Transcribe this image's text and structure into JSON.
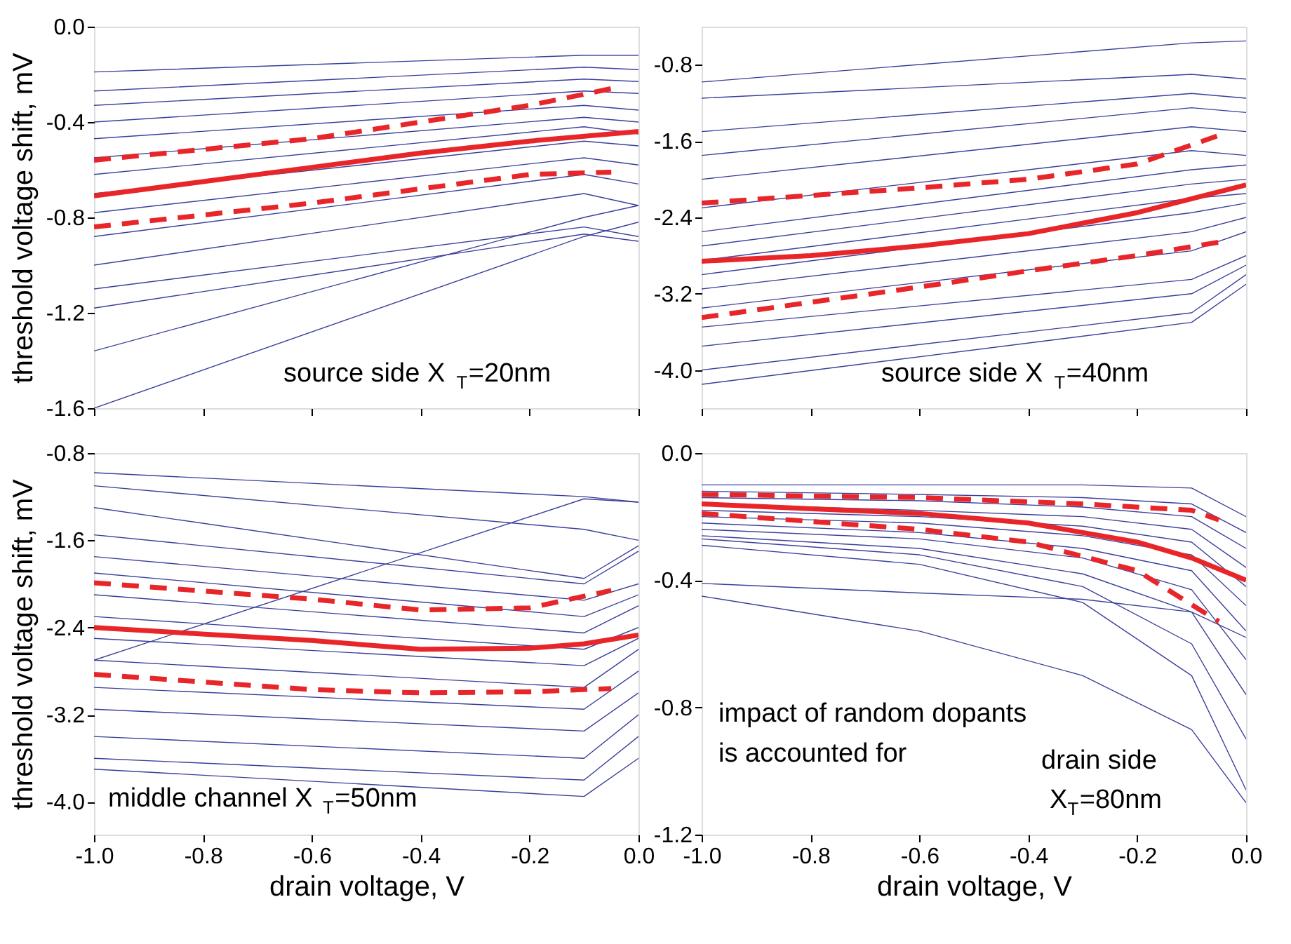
{
  "chart_data": [
    {
      "type": "line",
      "ylabel": "threshold voltage shift, mV",
      "xlim": [
        -1.0,
        0.0
      ],
      "xticks": [
        {
          "value": -1,
          "label": null
        },
        {
          "value": -0.8,
          "label": null
        },
        {
          "value": -0.6,
          "label": null
        },
        {
          "value": -0.4,
          "label": null
        },
        {
          "value": -0.2,
          "label": null
        },
        {
          "value": 0,
          "label": null
        }
      ],
      "ylim": [
        -1.6,
        0.0
      ],
      "yticks": [
        {
          "value": -1.6,
          "label": "-1.6"
        },
        {
          "value": -1.2,
          "label": "-1.2"
        },
        {
          "value": -0.8,
          "label": "-0.8"
        },
        {
          "value": -0.4,
          "label": "-0.4"
        },
        {
          "value": 0,
          "label": "0.0"
        }
      ],
      "tick_labels": "y",
      "annotations": [
        "source side  X$_{T}$=20nm"
      ],
      "series": [
        {
          "color": "#3a3f9a",
          "x": [
            -1.0,
            -0.1,
            0.0
          ],
          "values": [
            -0.19,
            -0.12,
            -0.12
          ]
        },
        {
          "color": "#3a3f9a",
          "x": [
            -1.0,
            -0.1,
            0.0
          ],
          "values": [
            -0.27,
            -0.17,
            -0.18
          ]
        },
        {
          "color": "#3a3f9a",
          "x": [
            -1.0,
            -0.1,
            0.0
          ],
          "values": [
            -0.33,
            -0.22,
            -0.23
          ]
        },
        {
          "color": "#3a3f9a",
          "x": [
            -1.0,
            -0.1,
            0.0
          ],
          "values": [
            -0.4,
            -0.27,
            -0.28
          ]
        },
        {
          "color": "#3a3f9a",
          "x": [
            -1.0,
            -0.1,
            0.0
          ],
          "values": [
            -0.47,
            -0.33,
            -0.35
          ]
        },
        {
          "color": "#3a3f9a",
          "x": [
            -1.0,
            -0.1,
            0.0
          ],
          "values": [
            -0.55,
            -0.38,
            -0.4
          ]
        },
        {
          "color": "#3a3f9a",
          "x": [
            -1.0,
            -0.1,
            0.0
          ],
          "values": [
            -0.62,
            -0.42,
            -0.45
          ]
        },
        {
          "color": "#3a3f9a",
          "x": [
            -1.0,
            -0.1,
            0.0
          ],
          "values": [
            -0.7,
            -0.48,
            -0.5
          ]
        },
        {
          "color": "#3a3f9a",
          "x": [
            -1.0,
            -0.1,
            0.0
          ],
          "values": [
            -0.78,
            -0.55,
            -0.58
          ]
        },
        {
          "color": "#3a3f9a",
          "x": [
            -1.0,
            -0.1,
            0.0
          ],
          "values": [
            -0.88,
            -0.62,
            -0.66
          ]
        },
        {
          "color": "#3a3f9a",
          "x": [
            -1.0,
            -0.1,
            0.0
          ],
          "values": [
            -1.0,
            -0.7,
            -0.75
          ]
        },
        {
          "color": "#3a3f9a",
          "x": [
            -1.0,
            -0.1,
            0.0
          ],
          "values": [
            -1.1,
            -0.84,
            -0.88
          ]
        },
        {
          "color": "#3a3f9a",
          "x": [
            -1.0,
            -0.1,
            0.0
          ],
          "values": [
            -1.18,
            -0.87,
            -0.9
          ]
        },
        {
          "color": "#3a3f9a",
          "x": [
            -1.0,
            -0.1,
            0.0
          ],
          "values": [
            -1.36,
            -0.8,
            -0.75
          ]
        },
        {
          "color": "#3a3f9a",
          "x": [
            -1.0,
            -0.1,
            0.0
          ],
          "values": [
            -1.6,
            -0.88,
            -0.82
          ]
        },
        {
          "color": "#e8262a",
          "line_style": "solid",
          "x": [
            -1.0,
            -0.8,
            -0.6,
            -0.4,
            -0.2,
            0.0
          ],
          "values": [
            -0.71,
            -0.65,
            -0.59,
            -0.53,
            -0.48,
            -0.44
          ]
        },
        {
          "color": "#e8262a",
          "line_style": "dashed",
          "x": [
            -1.0,
            -0.6,
            -0.4,
            -0.2,
            -0.05
          ],
          "values": [
            -0.56,
            -0.47,
            -0.4,
            -0.33,
            -0.26
          ]
        },
        {
          "color": "#e8262a",
          "line_style": "dashed",
          "x": [
            -1.0,
            -0.6,
            -0.4,
            -0.2,
            -0.05
          ],
          "values": [
            -0.84,
            -0.74,
            -0.68,
            -0.62,
            -0.61
          ]
        }
      ]
    },
    {
      "type": "line",
      "xlim": [
        -1.0,
        0.0
      ],
      "xticks": [
        {
          "value": -1,
          "label": null
        },
        {
          "value": -0.8,
          "label": null
        },
        {
          "value": -0.6,
          "label": null
        },
        {
          "value": -0.4,
          "label": null
        },
        {
          "value": -0.2,
          "label": null
        },
        {
          "value": 0,
          "label": null
        }
      ],
      "ylim": [
        -4.4,
        -0.4
      ],
      "yticks": [
        {
          "value": -4,
          "label": "-4.0"
        },
        {
          "value": -3.2,
          "label": "-3.2"
        },
        {
          "value": -2.4,
          "label": "-2.4"
        },
        {
          "value": -1.6,
          "label": "-1.6"
        },
        {
          "value": -0.8,
          "label": "-0.8"
        }
      ],
      "tick_labels": "y",
      "annotations": [
        "source side  X$_{T}$=40nm"
      ],
      "series": [
        {
          "color": "#3a3f9a",
          "x": [
            -1.0,
            -0.1,
            0.0
          ],
          "values": [
            -0.98,
            -0.57,
            -0.55
          ]
        },
        {
          "color": "#3a3f9a",
          "x": [
            -1.0,
            -0.1,
            0.0
          ],
          "values": [
            -1.15,
            -0.9,
            -0.95
          ]
        },
        {
          "color": "#3a3f9a",
          "x": [
            -1.0,
            -0.1,
            0.0
          ],
          "values": [
            -1.5,
            -1.1,
            -1.15
          ]
        },
        {
          "color": "#3a3f9a",
          "x": [
            -1.0,
            -0.1,
            0.0
          ],
          "values": [
            -1.75,
            -1.25,
            -1.3
          ]
        },
        {
          "color": "#3a3f9a",
          "x": [
            -1.0,
            -0.1,
            0.0
          ],
          "values": [
            -2.0,
            -1.45,
            -1.5
          ]
        },
        {
          "color": "#3a3f9a",
          "x": [
            -1.0,
            -0.1,
            0.0
          ],
          "values": [
            -2.3,
            -1.7,
            -1.75
          ]
        },
        {
          "color": "#3a3f9a",
          "x": [
            -1.0,
            -0.1,
            0.0
          ],
          "values": [
            -2.55,
            -1.9,
            -1.85
          ]
        },
        {
          "color": "#3a3f9a",
          "x": [
            -1.0,
            -0.1,
            0.0
          ],
          "values": [
            -2.7,
            -2.05,
            -2.0
          ]
        },
        {
          "color": "#3a3f9a",
          "x": [
            -1.0,
            -0.1,
            0.0
          ],
          "values": [
            -2.85,
            -2.2,
            -2.15
          ]
        },
        {
          "color": "#3a3f9a",
          "x": [
            -1.0,
            -0.1,
            0.0
          ],
          "values": [
            -3.0,
            -2.35,
            -2.25
          ]
        },
        {
          "color": "#3a3f9a",
          "x": [
            -1.0,
            -0.1,
            0.0
          ],
          "values": [
            -3.15,
            -2.55,
            -2.4
          ]
        },
        {
          "color": "#3a3f9a",
          "x": [
            -1.0,
            -0.1,
            0.0
          ],
          "values": [
            -3.35,
            -2.75,
            -2.55
          ]
        },
        {
          "color": "#3a3f9a",
          "x": [
            -1.0,
            -0.1,
            0.0
          ],
          "values": [
            -3.55,
            -3.05,
            -2.8
          ]
        },
        {
          "color": "#3a3f9a",
          "x": [
            -1.0,
            -0.1,
            0.0
          ],
          "values": [
            -3.75,
            -3.2,
            -2.9
          ]
        },
        {
          "color": "#3a3f9a",
          "x": [
            -1.0,
            -0.1,
            0.0
          ],
          "values": [
            -4.0,
            -3.4,
            -3.0
          ]
        },
        {
          "color": "#3a3f9a",
          "x": [
            -1.0,
            -0.1,
            0.0
          ],
          "values": [
            -4.15,
            -3.5,
            -3.1
          ]
        },
        {
          "color": "#e8262a",
          "line_style": "solid",
          "x": [
            -1.0,
            -0.8,
            -0.6,
            -0.4,
            -0.2,
            0.0
          ],
          "values": [
            -2.86,
            -2.8,
            -2.7,
            -2.57,
            -2.35,
            -2.06
          ]
        },
        {
          "color": "#e8262a",
          "line_style": "dashed",
          "x": [
            -1.0,
            -0.6,
            -0.4,
            -0.2,
            -0.05
          ],
          "values": [
            -2.25,
            -2.09,
            -2.0,
            -1.84,
            -1.54
          ]
        },
        {
          "color": "#e8262a",
          "line_style": "dashed",
          "x": [
            -1.0,
            -0.6,
            -0.4,
            -0.2,
            -0.05
          ],
          "values": [
            -3.45,
            -3.13,
            -2.96,
            -2.8,
            -2.66
          ]
        }
      ]
    },
    {
      "type": "line",
      "ylabel": "threshold voltage shift, mV",
      "xlabel": "drain voltage, V",
      "xlim": [
        -1.0,
        0.0
      ],
      "xticks": [
        {
          "value": -1,
          "label": "-1.0"
        },
        {
          "value": -0.8,
          "label": "-0.8"
        },
        {
          "value": -0.6,
          "label": "-0.6"
        },
        {
          "value": -0.4,
          "label": "-0.4"
        },
        {
          "value": -0.2,
          "label": "-0.2"
        },
        {
          "value": 0,
          "label": "0.0"
        }
      ],
      "ylim": [
        -4.3,
        -0.8
      ],
      "yticks": [
        {
          "value": -4,
          "label": "-4.0"
        },
        {
          "value": -3.2,
          "label": "-3.2"
        },
        {
          "value": -2.4,
          "label": "-2.4"
        },
        {
          "value": -1.6,
          "label": "-1.6"
        },
        {
          "value": -0.8,
          "label": "-0.8"
        }
      ],
      "annotations": [
        "middle channel  X$_{T}$=50nm"
      ],
      "series": [
        {
          "color": "#3a3f9a",
          "x": [
            -1.0,
            -0.1,
            0.0
          ],
          "values": [
            -0.98,
            -1.2,
            -1.25
          ]
        },
        {
          "color": "#3a3f9a",
          "x": [
            -1.0,
            -0.1,
            0.0
          ],
          "values": [
            -1.1,
            -1.5,
            -1.6
          ]
        },
        {
          "color": "#3a3f9a",
          "x": [
            -1.0,
            -0.1,
            0.0
          ],
          "values": [
            -1.3,
            -1.95,
            -1.65
          ]
        },
        {
          "color": "#3a3f9a",
          "x": [
            -1.0,
            -0.1,
            0.0
          ],
          "values": [
            -1.55,
            -2.0,
            -1.7
          ]
        },
        {
          "color": "#3a3f9a",
          "x": [
            -1.0,
            -0.1,
            0.0
          ],
          "values": [
            -1.75,
            -2.15,
            -2.0
          ]
        },
        {
          "color": "#3a3f9a",
          "x": [
            -1.0,
            -0.1,
            0.0
          ],
          "values": [
            -1.9,
            -2.3,
            -2.1
          ]
        },
        {
          "color": "#3a3f9a",
          "x": [
            -1.0,
            -0.1,
            0.0
          ],
          "values": [
            -2.1,
            -2.45,
            -2.2
          ]
        },
        {
          "color": "#3a3f9a",
          "x": [
            -1.0,
            -0.1,
            0.0
          ],
          "values": [
            -2.3,
            -2.6,
            -2.4
          ]
        },
        {
          "color": "#3a3f9a",
          "x": [
            -1.0,
            -0.1,
            0.0
          ],
          "values": [
            -2.5,
            -2.75,
            -2.5
          ]
        },
        {
          "color": "#3a3f9a",
          "x": [
            -1.0,
            -0.1,
            0.0
          ],
          "values": [
            -2.7,
            -2.95,
            -2.6
          ]
        },
        {
          "color": "#3a3f9a",
          "x": [
            -1.0,
            -0.1,
            0.0
          ],
          "values": [
            -2.95,
            -3.15,
            -2.8
          ]
        },
        {
          "color": "#3a3f9a",
          "x": [
            -1.0,
            -0.1,
            0.0
          ],
          "values": [
            -3.15,
            -3.35,
            -3.0
          ]
        },
        {
          "color": "#3a3f9a",
          "x": [
            -1.0,
            -0.1,
            0.0
          ],
          "values": [
            -3.4,
            -3.6,
            -3.2
          ]
        },
        {
          "color": "#3a3f9a",
          "x": [
            -1.0,
            -0.1,
            0.0
          ],
          "values": [
            -3.6,
            -3.8,
            -3.4
          ]
        },
        {
          "color": "#3a3f9a",
          "x": [
            -1.0,
            -0.1,
            0.0
          ],
          "values": [
            -3.7,
            -3.95,
            -3.6
          ]
        },
        {
          "color": "#3a3f9a",
          "x": [
            -1.0,
            -0.1,
            0.0
          ],
          "values": [
            -2.7,
            -1.22,
            -1.25
          ]
        },
        {
          "color": "#e8262a",
          "line_style": "solid",
          "x": [
            -1.0,
            -0.6,
            -0.4,
            -0.2,
            -0.1,
            0.0
          ],
          "values": [
            -2.4,
            -2.52,
            -2.6,
            -2.59,
            -2.55,
            -2.47
          ]
        },
        {
          "color": "#e8262a",
          "line_style": "dashed",
          "x": [
            -1.0,
            -0.6,
            -0.4,
            -0.2,
            -0.05
          ],
          "values": [
            -1.99,
            -2.14,
            -2.24,
            -2.22,
            -2.06
          ]
        },
        {
          "color": "#e8262a",
          "line_style": "dashed",
          "x": [
            -1.0,
            -0.6,
            -0.4,
            -0.2,
            -0.05
          ],
          "values": [
            -2.83,
            -2.97,
            -3.0,
            -2.99,
            -2.96
          ]
        }
      ]
    },
    {
      "type": "line",
      "xlabel": "drain voltage, V",
      "xlim": [
        -1.0,
        0.0
      ],
      "xticks": [
        {
          "value": -1,
          "label": "-1.0"
        },
        {
          "value": -0.8,
          "label": "-0.8"
        },
        {
          "value": -0.6,
          "label": "-0.6"
        },
        {
          "value": -0.4,
          "label": "-0.4"
        },
        {
          "value": -0.2,
          "label": "-0.2"
        },
        {
          "value": 0,
          "label": "0.0"
        }
      ],
      "ylim": [
        -1.2,
        0.0
      ],
      "yticks": [
        {
          "value": -1.2,
          "label": "-1.2"
        },
        {
          "value": -0.8,
          "label": "-0.8"
        },
        {
          "value": -0.4,
          "label": "-0.4"
        },
        {
          "value": 0,
          "label": "0.0"
        }
      ],
      "annotations": [
        "impact of random dopants",
        "is accounted for",
        "drain side",
        "X$_{T}$=80nm"
      ],
      "series": [
        {
          "color": "#3a3f9a",
          "x": [
            -1.0,
            -0.6,
            -0.3,
            -0.1,
            0.0
          ],
          "values": [
            -0.1,
            -0.1,
            -0.1,
            -0.11,
            -0.2
          ]
        },
        {
          "color": "#3a3f9a",
          "x": [
            -1.0,
            -0.6,
            -0.3,
            -0.1,
            0.0
          ],
          "values": [
            -0.12,
            -0.13,
            -0.14,
            -0.16,
            -0.25
          ]
        },
        {
          "color": "#3a3f9a",
          "x": [
            -1.0,
            -0.6,
            -0.3,
            -0.1,
            0.0
          ],
          "values": [
            -0.14,
            -0.15,
            -0.17,
            -0.2,
            -0.3
          ]
        },
        {
          "color": "#3a3f9a",
          "x": [
            -1.0,
            -0.6,
            -0.3,
            -0.1,
            0.0
          ],
          "values": [
            -0.16,
            -0.18,
            -0.2,
            -0.24,
            -0.36
          ]
        },
        {
          "color": "#3a3f9a",
          "x": [
            -1.0,
            -0.6,
            -0.3,
            -0.1,
            0.0
          ],
          "values": [
            -0.18,
            -0.2,
            -0.23,
            -0.28,
            -0.42
          ]
        },
        {
          "color": "#3a3f9a",
          "x": [
            -1.0,
            -0.6,
            -0.3,
            -0.1,
            0.0
          ],
          "values": [
            -0.2,
            -0.22,
            -0.26,
            -0.32,
            -0.48
          ]
        },
        {
          "color": "#3a3f9a",
          "x": [
            -1.0,
            -0.6,
            -0.3,
            -0.1,
            0.0
          ],
          "values": [
            -0.22,
            -0.25,
            -0.3,
            -0.37,
            -0.56
          ]
        },
        {
          "color": "#3a3f9a",
          "x": [
            -1.0,
            -0.6,
            -0.3,
            -0.1,
            0.0
          ],
          "values": [
            -0.24,
            -0.27,
            -0.33,
            -0.43,
            -0.65
          ]
        },
        {
          "color": "#3a3f9a",
          "x": [
            -1.0,
            -0.6,
            -0.3,
            -0.1,
            0.0
          ],
          "values": [
            -0.26,
            -0.3,
            -0.38,
            -0.5,
            -0.76
          ]
        },
        {
          "color": "#3a3f9a",
          "x": [
            -1.0,
            -0.6,
            -0.3,
            -0.1,
            0.0
          ],
          "values": [
            -0.27,
            -0.32,
            -0.42,
            -0.6,
            -0.9
          ]
        },
        {
          "color": "#3a3f9a",
          "x": [
            -1.0,
            -0.6,
            -0.3,
            -0.1,
            0.0
          ],
          "values": [
            -0.29,
            -0.35,
            -0.47,
            -0.7,
            -1.06
          ]
        },
        {
          "color": "#3a3f9a",
          "x": [
            -1.0,
            -0.6,
            -0.3,
            -0.1,
            0.0
          ],
          "values": [
            -0.41,
            -0.44,
            -0.46,
            -0.5,
            -0.58
          ]
        },
        {
          "color": "#3a3f9a",
          "x": [
            -1.0,
            -0.6,
            -0.3,
            -0.1,
            0.0
          ],
          "values": [
            -0.45,
            -0.56,
            -0.7,
            -0.87,
            -1.1
          ]
        },
        {
          "color": "#e8262a",
          "line_style": "solid",
          "x": [
            -1.0,
            -0.6,
            -0.4,
            -0.2,
            -0.1,
            0.0
          ],
          "values": [
            -0.16,
            -0.19,
            -0.22,
            -0.28,
            -0.33,
            -0.4
          ]
        },
        {
          "color": "#e8262a",
          "line_style": "dashed",
          "x": [
            -1.0,
            -0.6,
            -0.3,
            -0.1,
            -0.05
          ],
          "values": [
            -0.13,
            -0.14,
            -0.16,
            -0.18,
            -0.21
          ]
        },
        {
          "color": "#e8262a",
          "line_style": "dashed",
          "x": [
            -1.0,
            -0.6,
            -0.4,
            -0.2,
            -0.05
          ],
          "values": [
            -0.19,
            -0.24,
            -0.28,
            -0.37,
            -0.53
          ]
        }
      ]
    }
  ]
}
